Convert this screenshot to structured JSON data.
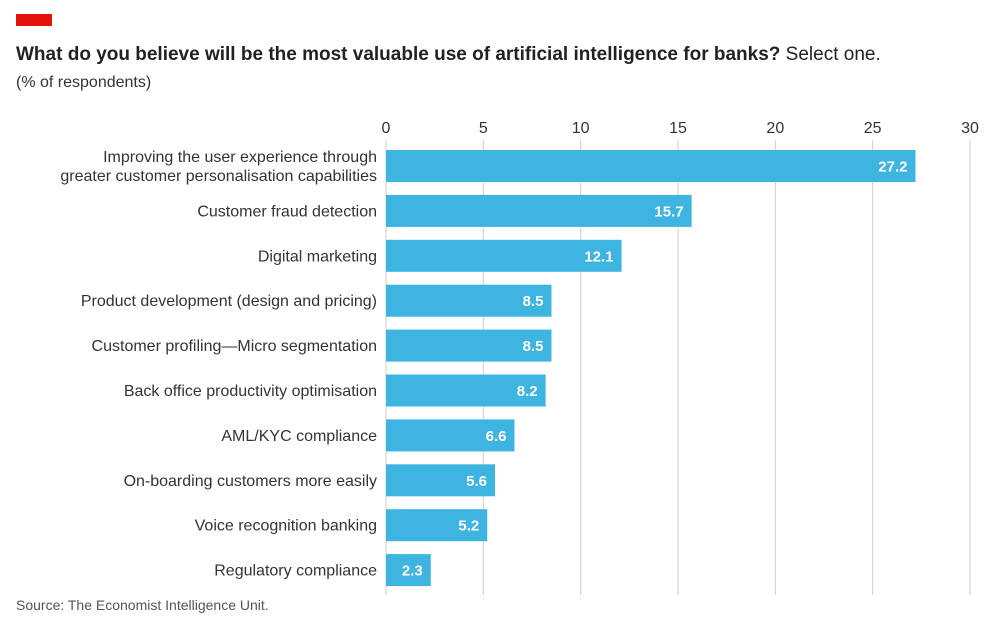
{
  "header": {
    "title_bold": "What do you believe will be the most valuable use of artificial intelligence for banks?",
    "title_rest": " Select one.",
    "units": "(% of respondents)"
  },
  "footer": {
    "source": "Source: The Economist Intelligence Unit."
  },
  "colors": {
    "accent": "#e3120b",
    "bar": "#3eb4e0",
    "grid": "#cfcfcf"
  },
  "chart_data": {
    "type": "bar",
    "orientation": "horizontal",
    "title": "What do you believe will be the most valuable use of artificial intelligence for banks? Select one.",
    "subtitle": "(% of respondents)",
    "categories": [
      [
        "Improving the user experience through",
        "greater customer personalisation capabilities"
      ],
      [
        "Customer fraud detection"
      ],
      [
        "Digital marketing"
      ],
      [
        "Product development (design and pricing)"
      ],
      [
        "Customer profiling—Micro segmentation"
      ],
      [
        "Back office productivity optimisation"
      ],
      [
        "AML/KYC compliance"
      ],
      [
        "On-boarding customers more easily"
      ],
      [
        "Voice recognition banking"
      ],
      [
        "Regulatory compliance"
      ]
    ],
    "values": [
      27.2,
      15.7,
      12.1,
      8.5,
      8.5,
      8.2,
      6.6,
      5.6,
      5.2,
      2.3
    ],
    "value_labels": [
      "27.2",
      "15.7",
      "12.1",
      "8.5",
      "8.5",
      "8.2",
      "6.6",
      "5.6",
      "5.2",
      "2.3"
    ],
    "xlim": [
      0,
      30
    ],
    "xticks": [
      0,
      5,
      10,
      15,
      20,
      25,
      30
    ],
    "xtick_position": "top",
    "grid": true,
    "legend": "none"
  }
}
